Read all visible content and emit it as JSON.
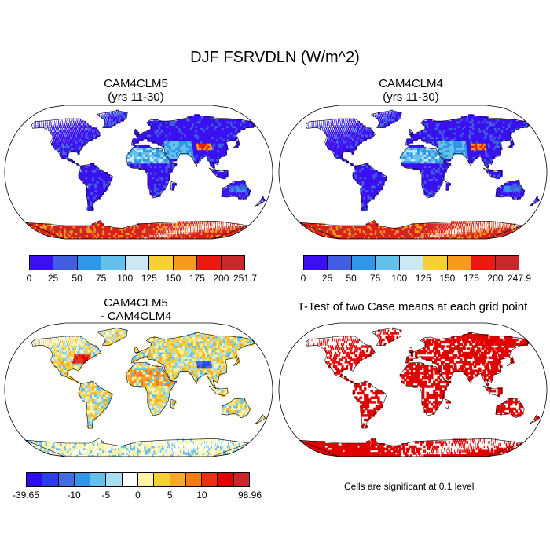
{
  "figure": {
    "title": "DJF FSRVDLN (W/m^2)"
  },
  "panels": [
    {
      "title_line1": "CAM4CLM5",
      "title_line2": "(yrs 11-30)",
      "field": "absolute"
    },
    {
      "title_line1": "CAM4CLM4",
      "title_line2": "(yrs 11-30)",
      "field": "absolute"
    },
    {
      "title_line1": "CAM4CLM5",
      "title_line2": "- CAM4CLM4",
      "field": "difference"
    },
    {
      "title_line1": "T-Test of two Case means at each grid point",
      "title_line2": "",
      "field": "significance"
    }
  ],
  "colorbars": [
    {
      "colors": [
        "#3a10f0",
        "#3f5fe0",
        "#2f96e8",
        "#66c0ec",
        "#cce8f2",
        "#f6d035",
        "#f79a1e",
        "#ea1a10",
        "#c8282a"
      ],
      "labels": [
        "0",
        "25",
        "50",
        "75",
        "100",
        "125",
        "150",
        "175",
        "200",
        "251.7"
      ]
    },
    {
      "colors": [
        "#3a10f0",
        "#3f5fe0",
        "#2f96e8",
        "#66c0ec",
        "#cce8f2",
        "#f6d035",
        "#f79a1e",
        "#ea1a10",
        "#c8282a"
      ],
      "labels": [
        "0",
        "25",
        "50",
        "75",
        "100",
        "125",
        "150",
        "175",
        "200",
        "247.9"
      ]
    },
    {
      "colors": [
        "#2c0cf0",
        "#2a3fe6",
        "#3f6ee0",
        "#2f96e8",
        "#66c0ec",
        "#a8dcf0",
        "#ffffff",
        "#fff3a8",
        "#f6d035",
        "#f7a82a",
        "#f77a14",
        "#ea3010",
        "#e00000",
        "#c8282a"
      ],
      "labels": [
        "-39.65",
        "-10",
        "-5",
        "0",
        "5",
        "10",
        "98.96"
      ],
      "label_box_index": [
        0,
        3,
        5,
        7,
        9,
        11,
        14
      ]
    }
  ],
  "significance_note": "Cells are significant at 0.1 level",
  "significance_color": "#e00000"
}
